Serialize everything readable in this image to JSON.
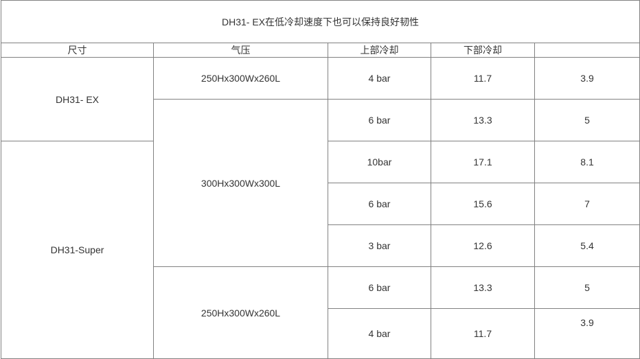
{
  "title": "DH31- EX在低冷却速度下也可以保持良好韧性",
  "headers": [
    "尺寸",
    "气压",
    "上部冷却",
    "下部冷却",
    ""
  ],
  "groups": {
    "g1": "DH31- EX",
    "g2": "DH31-Super"
  },
  "sizes": {
    "s1": "250Hx300Wx260L",
    "s2": "300Hx300Wx300L",
    "s3": "250Hx300Wx260L"
  },
  "rows": [
    {
      "pressure": "4 bar",
      "upper": "11.7",
      "lower": "3.9"
    },
    {
      "pressure": "6 bar",
      "upper": "13.3",
      "lower": "5"
    },
    {
      "pressure": "10bar",
      "upper": "17.1",
      "lower": "8.1"
    },
    {
      "pressure": "6 bar",
      "upper": "15.6",
      "lower": "7"
    },
    {
      "pressure": "3 bar",
      "upper": "12.6",
      "lower": "5.4"
    },
    {
      "pressure": "6 bar",
      "upper": "13.3",
      "lower": "5"
    },
    {
      "pressure": "4 bar",
      "upper": "11.7",
      "lower": "3.9"
    }
  ]
}
